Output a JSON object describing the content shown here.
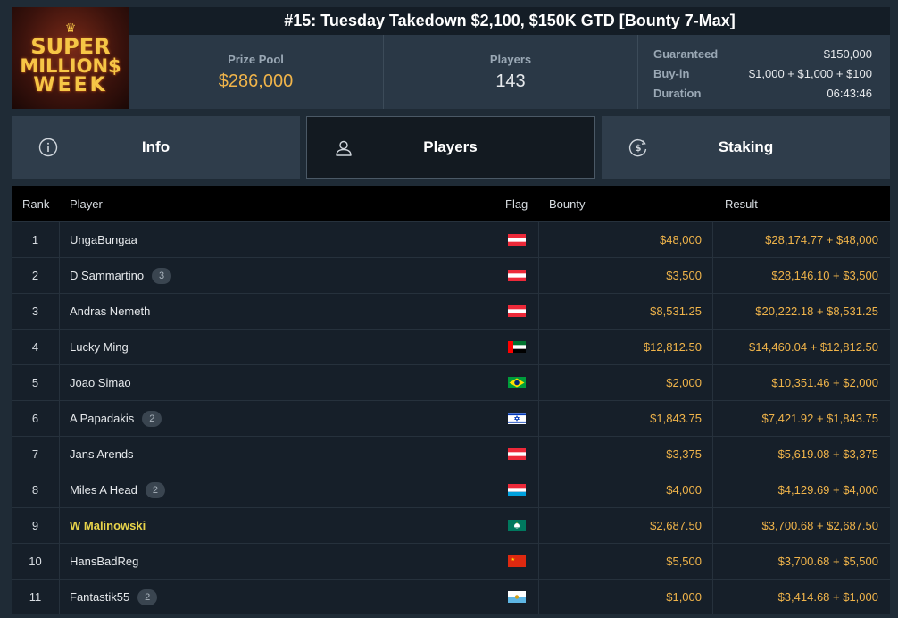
{
  "logo": {
    "line1": "SUPER",
    "line2": "MILLION$",
    "line3": "WEEK"
  },
  "title": "#15: Tuesday Takedown $2,100, $150K GTD [Bounty 7-Max]",
  "stats": {
    "prize_pool_label": "Prize Pool",
    "prize_pool_value": "$286,000",
    "players_label": "Players",
    "players_value": "143"
  },
  "details": [
    {
      "label": "Guaranteed",
      "value": "$150,000"
    },
    {
      "label": "Buy-in",
      "value": "$1,000 + $1,000 + $100"
    },
    {
      "label": "Duration",
      "value": "06:43:46"
    }
  ],
  "tabs": [
    {
      "label": "Info",
      "icon": "info-icon",
      "active": false
    },
    {
      "label": "Players",
      "icon": "user-icon",
      "active": true
    },
    {
      "label": "Staking",
      "icon": "dollar-coin-icon",
      "active": false
    }
  ],
  "table": {
    "headers": {
      "rank": "Rank",
      "player": "Player",
      "flag": "Flag",
      "bounty": "Bounty",
      "result": "Result"
    },
    "rows": [
      {
        "rank": "1",
        "player": "UngaBungaa",
        "badge": "",
        "flag": "AT",
        "bounty": "$48,000",
        "result": "$28,174.77 + $48,000",
        "highlight": false
      },
      {
        "rank": "2",
        "player": "D Sammartino",
        "badge": "3",
        "flag": "AT",
        "bounty": "$3,500",
        "result": "$28,146.10 + $3,500",
        "highlight": false
      },
      {
        "rank": "3",
        "player": "Andras Nemeth",
        "badge": "",
        "flag": "AT",
        "bounty": "$8,531.25",
        "result": "$20,222.18 + $8,531.25",
        "highlight": false
      },
      {
        "rank": "4",
        "player": "Lucky Ming",
        "badge": "",
        "flag": "AE",
        "bounty": "$12,812.50",
        "result": "$14,460.04 + $12,812.50",
        "highlight": false
      },
      {
        "rank": "5",
        "player": "Joao Simao",
        "badge": "",
        "flag": "BR",
        "bounty": "$2,000",
        "result": "$10,351.46 + $2,000",
        "highlight": false
      },
      {
        "rank": "6",
        "player": "A Papadakis",
        "badge": "2",
        "flag": "IL",
        "bounty": "$1,843.75",
        "result": "$7,421.92 + $1,843.75",
        "highlight": false
      },
      {
        "rank": "7",
        "player": "Jans Arends",
        "badge": "",
        "flag": "AT",
        "bounty": "$3,375",
        "result": "$5,619.08 + $3,375",
        "highlight": false
      },
      {
        "rank": "8",
        "player": "Miles A Head",
        "badge": "2",
        "flag": "LU",
        "bounty": "$4,000",
        "result": "$4,129.69 + $4,000",
        "highlight": false
      },
      {
        "rank": "9",
        "player": "W Malinowski",
        "badge": "",
        "flag": "MO",
        "bounty": "$2,687.50",
        "result": "$3,700.68 + $2,687.50",
        "highlight": true
      },
      {
        "rank": "10",
        "player": "HansBadReg",
        "badge": "",
        "flag": "CN",
        "bounty": "$5,500",
        "result": "$3,700.68 + $5,500",
        "highlight": false
      },
      {
        "rank": "11",
        "player": "Fantastik55",
        "badge": "2",
        "flag": "SM",
        "bounty": "$1,000",
        "result": "$3,414.68 + $1,000",
        "highlight": false
      }
    ]
  },
  "colors": {
    "accent_gold": "#f0b44a",
    "highlight_name": "#e8d44a",
    "background": "#1f2b36"
  }
}
